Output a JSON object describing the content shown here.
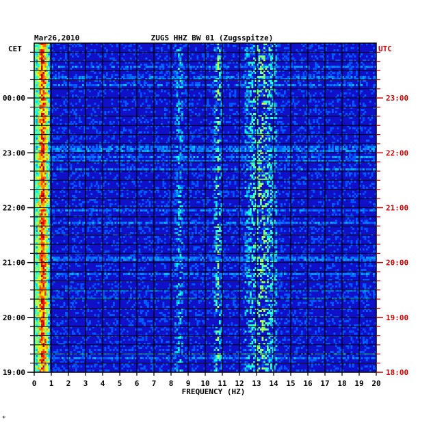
{
  "chart_data": {
    "type": "heatmap",
    "date": "Mar26,2010",
    "title": "ZUGS HHZ BW 01 (Zugsspitze)",
    "left_axis_label": "CET",
    "right_axis_label": "UTC",
    "xlabel": "FREQUENCY (HZ)",
    "x_ticks": [
      0,
      1,
      2,
      3,
      4,
      5,
      6,
      7,
      8,
      9,
      10,
      11,
      12,
      13,
      14,
      15,
      16,
      17,
      18,
      19,
      20
    ],
    "xlim": [
      0,
      20
    ],
    "left_time_ticks": [
      "00:00",
      "23:00",
      "22:00",
      "21:00",
      "20:00",
      "19:00"
    ],
    "right_time_ticks": [
      "23:00",
      "22:00",
      "21:00",
      "20:00",
      "19:00",
      "18:00"
    ],
    "time_range_utc": [
      "18:00",
      "24:00"
    ],
    "colormap": "jet",
    "background_color": "#1010c8",
    "label_color_left": "#000000",
    "label_color_right": "#d40000",
    "energy_bands_hz": [
      {
        "range": [
          0.1,
          0.8
        ],
        "level": "very high"
      },
      {
        "range": [
          10.5,
          10.9
        ],
        "level": "medium"
      },
      {
        "range": [
          12.3,
          14.2
        ],
        "level": "medium"
      },
      {
        "range": [
          8.2,
          8.7
        ],
        "level": "low"
      }
    ],
    "grid": true,
    "footer_mark": "*"
  }
}
